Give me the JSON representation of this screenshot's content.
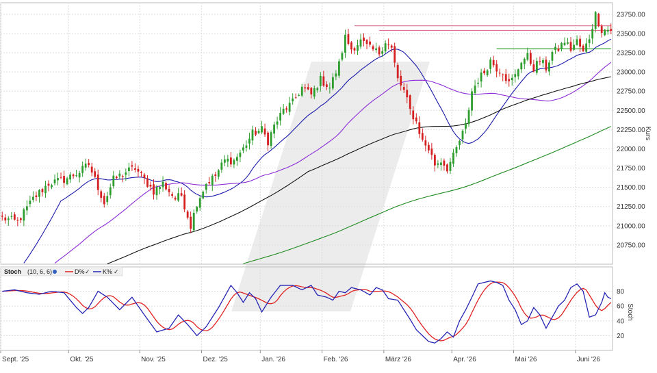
{
  "chart_data": [
    {
      "type": "candlestick",
      "title": "",
      "ylabel": "Kurs",
      "y_ticks": [
        20750,
        21000,
        21250,
        21500,
        21750,
        22000,
        22250,
        22500,
        22750,
        23000,
        23250,
        23500,
        23750
      ],
      "y_tick_labels": [
        "20750.00",
        "21000.00",
        "21250.00",
        "21500.00",
        "21750.00",
        "22000.00",
        "22250.00",
        "22500.00",
        "22750.00",
        "23000.00",
        "23250.00",
        "23500.00",
        "23750.00"
      ],
      "ylim": [
        20500,
        23900
      ],
      "grid": true,
      "bullish_color": "#2e9e2e",
      "bearish_color": "#d42020",
      "months": [
        "Sept. '25",
        "Okt. '25",
        "Nov. '25",
        "Dez. '25",
        "Jan. '26",
        "Feb. '26",
        "März '26",
        "Apr. '26",
        "Mai '26",
        "Juni '26"
      ],
      "month_start_index": [
        0,
        22,
        45,
        65,
        84,
        104,
        124,
        146,
        166,
        186
      ],
      "close_anchors": [
        [
          0,
          21100
        ],
        [
          5,
          21050
        ],
        [
          10,
          21350
        ],
        [
          15,
          21550
        ],
        [
          20,
          21600
        ],
        [
          25,
          21700
        ],
        [
          28,
          21800
        ],
        [
          30,
          21600
        ],
        [
          33,
          21300
        ],
        [
          36,
          21600
        ],
        [
          40,
          21700
        ],
        [
          43,
          21750
        ],
        [
          46,
          21600
        ],
        [
          49,
          21450
        ],
        [
          52,
          21550
        ],
        [
          56,
          21350
        ],
        [
          58,
          21400
        ],
        [
          61,
          21000
        ],
        [
          63,
          21300
        ],
        [
          66,
          21550
        ],
        [
          69,
          21650
        ],
        [
          72,
          21850
        ],
        [
          75,
          21850
        ],
        [
          78,
          22000
        ],
        [
          81,
          22200
        ],
        [
          84,
          22250
        ],
        [
          86,
          22100
        ],
        [
          88,
          22300
        ],
        [
          91,
          22500
        ],
        [
          94,
          22600
        ],
        [
          97,
          22800
        ],
        [
          100,
          22700
        ],
        [
          103,
          22900
        ],
        [
          106,
          22800
        ],
        [
          109,
          23100
        ],
        [
          111,
          23450
        ],
        [
          113,
          23300
        ],
        [
          116,
          23400
        ],
        [
          119,
          23300
        ],
        [
          122,
          23250
        ],
        [
          124,
          23400
        ],
        [
          126,
          23300
        ],
        [
          128,
          22900
        ],
        [
          130,
          22750
        ],
        [
          132,
          22500
        ],
        [
          134,
          22350
        ],
        [
          136,
          22100
        ],
        [
          138,
          22000
        ],
        [
          140,
          21800
        ],
        [
          142,
          21850
        ],
        [
          144,
          21750
        ],
        [
          146,
          21900
        ],
        [
          148,
          22100
        ],
        [
          150,
          22300
        ],
        [
          152,
          22750
        ],
        [
          154,
          22900
        ],
        [
          156,
          23000
        ],
        [
          158,
          23150
        ],
        [
          160,
          23050
        ],
        [
          162,
          23000
        ],
        [
          164,
          22850
        ],
        [
          166,
          22950
        ],
        [
          168,
          23150
        ],
        [
          170,
          23200
        ],
        [
          172,
          23050
        ],
        [
          174,
          23150
        ],
        [
          176,
          23050
        ],
        [
          178,
          23250
        ],
        [
          180,
          23300
        ],
        [
          182,
          23400
        ],
        [
          184,
          23300
        ],
        [
          186,
          23400
        ],
        [
          188,
          23250
        ],
        [
          190,
          23450
        ],
        [
          192,
          23750
        ],
        [
          193,
          23650
        ],
        [
          194,
          23550
        ]
      ],
      "close_range": [
        20950,
        23780
      ],
      "indicators": [
        {
          "period": 20,
          "color": "#1a1aaa"
        },
        {
          "period": 50,
          "color": "#8a2ad6"
        },
        {
          "period": 100,
          "color": "#111111"
        },
        {
          "period": 200,
          "color": "#1e8a1e"
        }
      ],
      "resistance_lines": [
        {
          "value": 23600,
          "color": "#e07090",
          "from_index": 114,
          "to_index": 197
        },
        {
          "value": 23540,
          "color": "#e07090",
          "from_index": 122,
          "to_index": 197
        }
      ],
      "support_lines": [
        {
          "value": 23300,
          "color": "#2aa02a",
          "from_index": 160,
          "to_index": 197
        }
      ]
    },
    {
      "type": "line",
      "name": "Stoch",
      "ylabel": "Stoch",
      "legend": {
        "label": "Stoch",
        "params": "(10, 6, 6)",
        "series": [
          "D%",
          "K%"
        ]
      },
      "ylim": [
        0,
        100
      ],
      "y_ticks": [
        20,
        40,
        60,
        80
      ],
      "y_tick_labels": [
        "20",
        "40",
        "60",
        "80"
      ],
      "series": [
        {
          "name": "D%",
          "color": "#e02020",
          "smoothing": 6
        },
        {
          "name": "K%",
          "color": "#2424b4",
          "smoothing": 0
        }
      ],
      "k_anchors": [
        [
          0,
          80
        ],
        [
          4,
          82
        ],
        [
          8,
          78
        ],
        [
          12,
          76
        ],
        [
          16,
          80
        ],
        [
          20,
          78
        ],
        [
          24,
          58
        ],
        [
          26,
          50
        ],
        [
          28,
          58
        ],
        [
          31,
          80
        ],
        [
          34,
          72
        ],
        [
          38,
          55
        ],
        [
          42,
          72
        ],
        [
          46,
          48
        ],
        [
          50,
          25
        ],
        [
          54,
          30
        ],
        [
          57,
          48
        ],
        [
          60,
          35
        ],
        [
          63,
          20
        ],
        [
          66,
          32
        ],
        [
          70,
          58
        ],
        [
          74,
          88
        ],
        [
          76,
          78
        ],
        [
          78,
          65
        ],
        [
          80,
          78
        ],
        [
          82,
          70
        ],
        [
          84,
          52
        ],
        [
          87,
          72
        ],
        [
          90,
          88
        ],
        [
          94,
          88
        ],
        [
          97,
          82
        ],
        [
          100,
          88
        ],
        [
          102,
          75
        ],
        [
          105,
          72
        ],
        [
          107,
          68
        ],
        [
          109,
          80
        ],
        [
          111,
          78
        ],
        [
          113,
          85
        ],
        [
          116,
          82
        ],
        [
          119,
          75
        ],
        [
          121,
          85
        ],
        [
          123,
          82
        ],
        [
          125,
          70
        ],
        [
          128,
          68
        ],
        [
          130,
          55
        ],
        [
          132,
          42
        ],
        [
          134,
          28
        ],
        [
          136,
          20
        ],
        [
          138,
          12
        ],
        [
          140,
          10
        ],
        [
          142,
          16
        ],
        [
          144,
          25
        ],
        [
          146,
          18
        ],
        [
          148,
          40
        ],
        [
          150,
          55
        ],
        [
          152,
          72
        ],
        [
          154,
          90
        ],
        [
          156,
          92
        ],
        [
          158,
          94
        ],
        [
          160,
          92
        ],
        [
          162,
          88
        ],
        [
          164,
          68
        ],
        [
          166,
          55
        ],
        [
          168,
          35
        ],
        [
          170,
          40
        ],
        [
          172,
          58
        ],
        [
          174,
          48
        ],
        [
          176,
          30
        ],
        [
          178,
          45
        ],
        [
          180,
          60
        ],
        [
          182,
          68
        ],
        [
          184,
          85
        ],
        [
          186,
          90
        ],
        [
          188,
          80
        ],
        [
          190,
          45
        ],
        [
          192,
          48
        ],
        [
          194,
          65
        ],
        [
          195,
          78
        ],
        [
          196,
          72
        ],
        [
          197,
          70
        ]
      ]
    }
  ]
}
